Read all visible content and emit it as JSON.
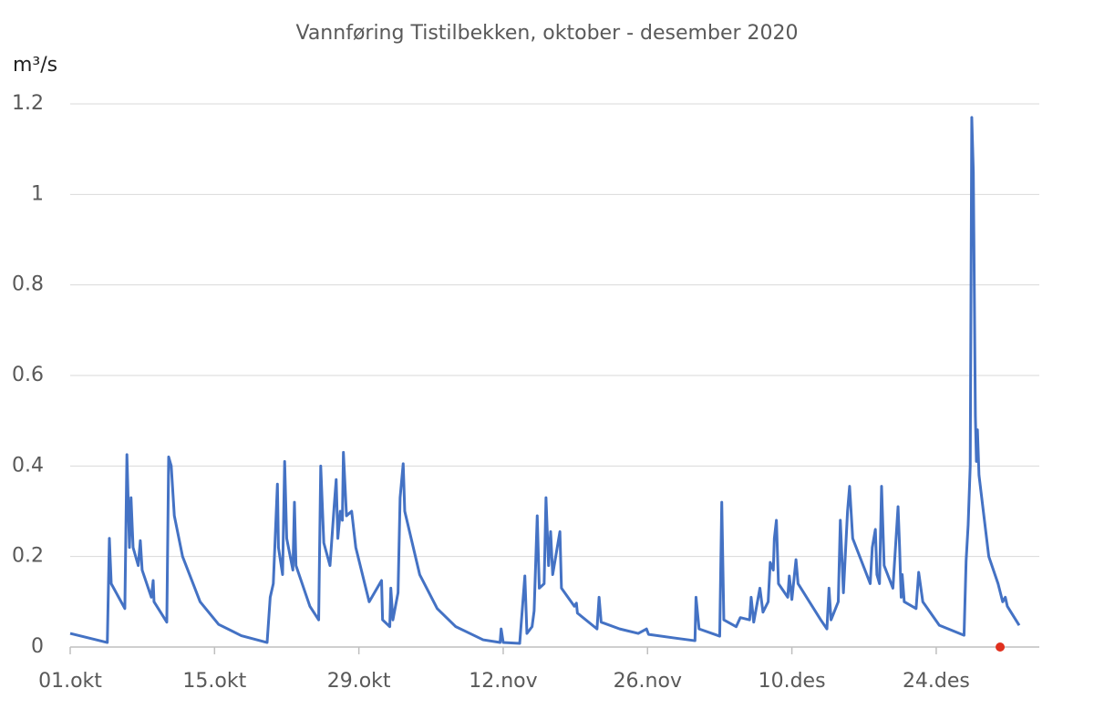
{
  "chart_data": {
    "type": "line",
    "title": "Vannføring Tistilbekken, oktober - desember 2020",
    "y_label": "m³/s",
    "xlim": [
      0,
      94
    ],
    "xticks": [
      {
        "value": 0,
        "label": "01.okt"
      },
      {
        "value": 14,
        "label": "15.okt"
      },
      {
        "value": 28,
        "label": "29.okt"
      },
      {
        "value": 42,
        "label": "12.nov"
      },
      {
        "value": 56,
        "label": "26.nov"
      },
      {
        "value": 70,
        "label": "10.des"
      },
      {
        "value": 84,
        "label": "24.des"
      }
    ],
    "ylim": [
      0,
      1.2
    ],
    "yticks": [
      0,
      0.2,
      0.4,
      0.6,
      0.8,
      1,
      1.2
    ],
    "grid": true,
    "series": [
      {
        "color": "#4472c4",
        "x": [
          0,
          3.6,
          3.8,
          3.98,
          5.3,
          5.5,
          5.75,
          5.9,
          6.1,
          6.6,
          6.8,
          6.98,
          7.87,
          8.05,
          8.13,
          9.37,
          9.55,
          9.8,
          10.1,
          10.9,
          12.6,
          14.4,
          16.6,
          19.1,
          19.4,
          19.7,
          20.1,
          20.2,
          20.6,
          20.8,
          21.0,
          21.6,
          21.75,
          21.9,
          23.25,
          24.1,
          24.3,
          24.6,
          25.2,
          25.6,
          25.8,
          25.96,
          26.2,
          26.4,
          26.5,
          26.8,
          27.3,
          27.7,
          29.0,
          30.2,
          30.3,
          31.0,
          31.1,
          31.3,
          31.8,
          32.0,
          32.3,
          32.45,
          33.9,
          35.6,
          37.4,
          40.05,
          41.7,
          41.8,
          42.0,
          43.6,
          44.1,
          44.3,
          44.8,
          45.0,
          45.3,
          45.5,
          45.97,
          46.15,
          46.4,
          46.6,
          46.8,
          47.5,
          47.65,
          48.9,
          49.1,
          49.2,
          51.1,
          51.3,
          51.5,
          53.3,
          55.1,
          55.9,
          56.1,
          58.6,
          60.6,
          60.7,
          61.0,
          63.0,
          63.2,
          63.4,
          64.6,
          65.0,
          65.9,
          66.05,
          66.3,
          66.9,
          67.2,
          67.7,
          67.9,
          68.2,
          68.3,
          68.5,
          68.7,
          69.6,
          69.75,
          70.0,
          70.4,
          70.6,
          72.8,
          73.4,
          73.6,
          73.8,
          74.5,
          74.7,
          75.0,
          75.4,
          75.6,
          75.9,
          77.6,
          77.8,
          78.1,
          78.25,
          78.5,
          78.7,
          78.95,
          79.8,
          80.3,
          80.45,
          80.6,
          80.7,
          80.9,
          82.05,
          82.3,
          82.7,
          84.3,
          86.7,
          86.9,
          87.1,
          87.3,
          87.45,
          87.6,
          87.8,
          87.9,
          88.0,
          88.15,
          89.1,
          90.0,
          90.45,
          90.7,
          90.9,
          92.05
        ],
        "values": [
          0.03,
          0.01,
          0.24,
          0.14,
          0.085,
          0.425,
          0.22,
          0.33,
          0.22,
          0.18,
          0.235,
          0.17,
          0.11,
          0.147,
          0.1,
          0.055,
          0.42,
          0.4,
          0.29,
          0.2,
          0.1,
          0.05,
          0.025,
          0.01,
          0.11,
          0.14,
          0.36,
          0.22,
          0.16,
          0.41,
          0.24,
          0.17,
          0.32,
          0.18,
          0.09,
          0.06,
          0.4,
          0.23,
          0.18,
          0.31,
          0.37,
          0.24,
          0.3,
          0.28,
          0.43,
          0.29,
          0.3,
          0.22,
          0.1,
          0.147,
          0.06,
          0.045,
          0.13,
          0.06,
          0.12,
          0.33,
          0.405,
          0.3,
          0.16,
          0.085,
          0.045,
          0.016,
          0.01,
          0.04,
          0.01,
          0.008,
          0.157,
          0.03,
          0.045,
          0.08,
          0.29,
          0.13,
          0.14,
          0.33,
          0.18,
          0.255,
          0.16,
          0.255,
          0.13,
          0.09,
          0.097,
          0.075,
          0.04,
          0.11,
          0.055,
          0.04,
          0.03,
          0.04,
          0.028,
          0.02,
          0.014,
          0.11,
          0.04,
          0.024,
          0.32,
          0.06,
          0.045,
          0.065,
          0.06,
          0.11,
          0.055,
          0.13,
          0.077,
          0.1,
          0.187,
          0.17,
          0.24,
          0.28,
          0.14,
          0.11,
          0.157,
          0.105,
          0.193,
          0.14,
          0.06,
          0.04,
          0.13,
          0.06,
          0.1,
          0.28,
          0.12,
          0.3,
          0.355,
          0.24,
          0.14,
          0.22,
          0.26,
          0.16,
          0.14,
          0.355,
          0.18,
          0.13,
          0.31,
          0.22,
          0.11,
          0.16,
          0.1,
          0.085,
          0.165,
          0.1,
          0.048,
          0.026,
          0.19,
          0.27,
          0.4,
          1.17,
          1.05,
          0.51,
          0.41,
          0.48,
          0.38,
          0.2,
          0.14,
          0.1,
          0.11,
          0.09,
          0.048
        ]
      }
    ],
    "point": {
      "x": 90.2,
      "y": 0,
      "color": "#e0301e"
    }
  }
}
